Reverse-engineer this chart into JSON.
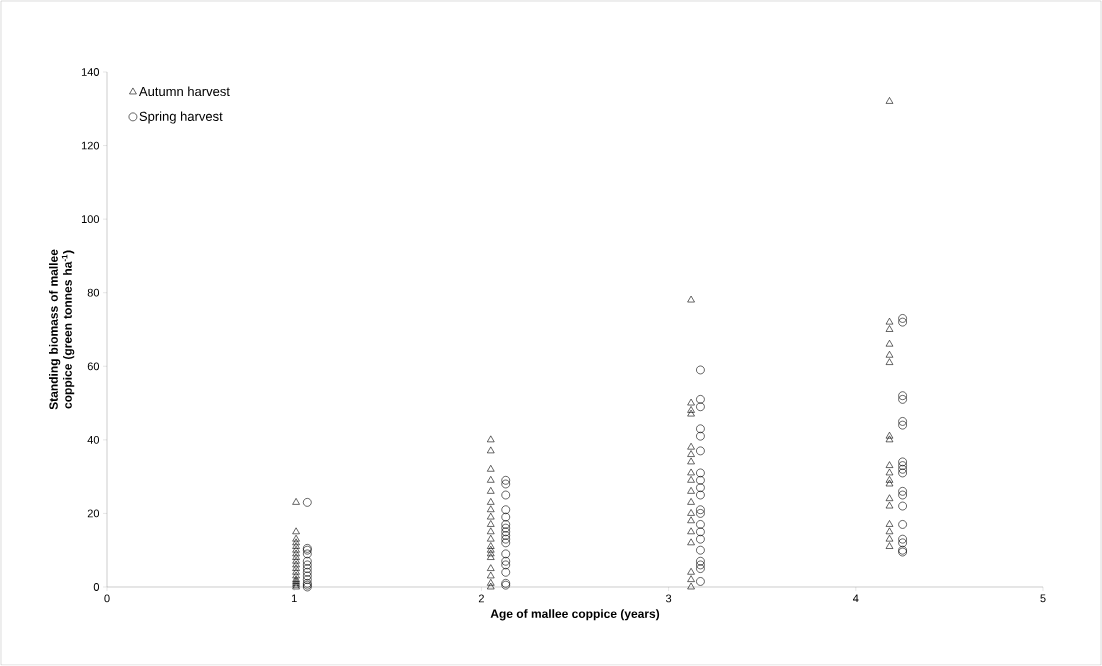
{
  "chart_data": {
    "type": "scatter",
    "xlabel": "Age of mallee coppice (years)",
    "ylabel": "Standing biomass of mallee coppice (green tonnes ha$^{-1}$)",
    "xlim": [
      0,
      5
    ],
    "xticks": [
      0,
      1,
      2,
      3,
      4,
      5
    ],
    "ylim": [
      0,
      140
    ],
    "yticks": [
      0,
      20,
      40,
      60,
      80,
      100,
      120,
      140
    ],
    "grid": false,
    "legend": "top left",
    "series": [
      {
        "name": "Autumn harvest",
        "color": "#000000",
        "marker": "triangle",
        "x": [
          1.01,
          1.01,
          1.01,
          1.01,
          1.01,
          1.01,
          1.01,
          1.01,
          1.01,
          1.01,
          1.01,
          1.01,
          1.01,
          1.01,
          1.01,
          1.01,
          1.01,
          1.01,
          2.05,
          2.05,
          2.05,
          2.05,
          2.05,
          2.05,
          2.05,
          2.05,
          2.05,
          2.05,
          2.05,
          2.05,
          2.05,
          2.05,
          2.05,
          2.05,
          2.05,
          2.05,
          2.05,
          3.12,
          3.12,
          3.12,
          3.12,
          3.12,
          3.12,
          3.12,
          3.12,
          3.12,
          3.12,
          3.12,
          3.12,
          3.12,
          3.12,
          3.12,
          3.12,
          3.12,
          3.12,
          4.18,
          4.18,
          4.18,
          4.18,
          4.18,
          4.18,
          4.18,
          4.18,
          4.18,
          4.18,
          4.18,
          4.18,
          4.18,
          4.18,
          4.18,
          4.18,
          4.18,
          4.18
        ],
        "values": [
          23,
          15,
          13,
          12,
          11,
          10,
          9,
          8,
          7,
          6,
          5,
          4,
          3,
          2,
          1.5,
          1,
          0.5,
          0,
          40,
          37,
          32,
          29,
          26,
          23,
          21,
          19,
          17,
          15,
          13,
          11,
          10,
          9,
          8,
          5,
          3,
          1,
          0,
          78,
          50,
          48,
          47,
          38,
          36,
          34,
          31,
          29,
          26,
          23,
          20,
          18,
          15,
          12,
          4,
          2,
          0,
          132,
          72,
          70,
          66,
          63,
          61,
          41,
          40,
          33,
          31,
          29,
          28,
          24,
          22,
          17,
          15,
          13,
          11
        ]
      },
      {
        "name": "Spring harvest",
        "color": "#000000",
        "marker": "circle",
        "x": [
          1.07,
          1.07,
          1.07,
          1.07,
          1.07,
          1.07,
          1.07,
          1.07,
          1.07,
          1.07,
          1.07,
          1.07,
          1.07,
          2.13,
          2.13,
          2.13,
          2.13,
          2.13,
          2.13,
          2.13,
          2.13,
          2.13,
          2.13,
          2.13,
          2.13,
          2.13,
          2.13,
          2.13,
          2.13,
          2.13,
          3.17,
          3.17,
          3.17,
          3.17,
          3.17,
          3.17,
          3.17,
          3.17,
          3.17,
          3.17,
          3.17,
          3.17,
          3.17,
          3.17,
          3.17,
          3.17,
          3.17,
          3.17,
          3.17,
          3.17,
          4.25,
          4.25,
          4.25,
          4.25,
          4.25,
          4.25,
          4.25,
          4.25,
          4.25,
          4.25,
          4.25,
          4.25,
          4.25,
          4.25,
          4.25,
          4.25,
          4.25,
          4.25
        ],
        "values": [
          23,
          10.5,
          10,
          9,
          7,
          6,
          5,
          4,
          3,
          2,
          1,
          0.5,
          0,
          29,
          28,
          25,
          21,
          19,
          17,
          16,
          15,
          14,
          13,
          12,
          9,
          7,
          6,
          4,
          1,
          0.5,
          59,
          51,
          49,
          43,
          41,
          37,
          31,
          29,
          27,
          25,
          21,
          20,
          17,
          15,
          13,
          10,
          7,
          6,
          5,
          1.5,
          73,
          72,
          52,
          51,
          45,
          44,
          34,
          33,
          32,
          31,
          26,
          25,
          22,
          17,
          13,
          12,
          10,
          9.5
        ]
      }
    ]
  }
}
